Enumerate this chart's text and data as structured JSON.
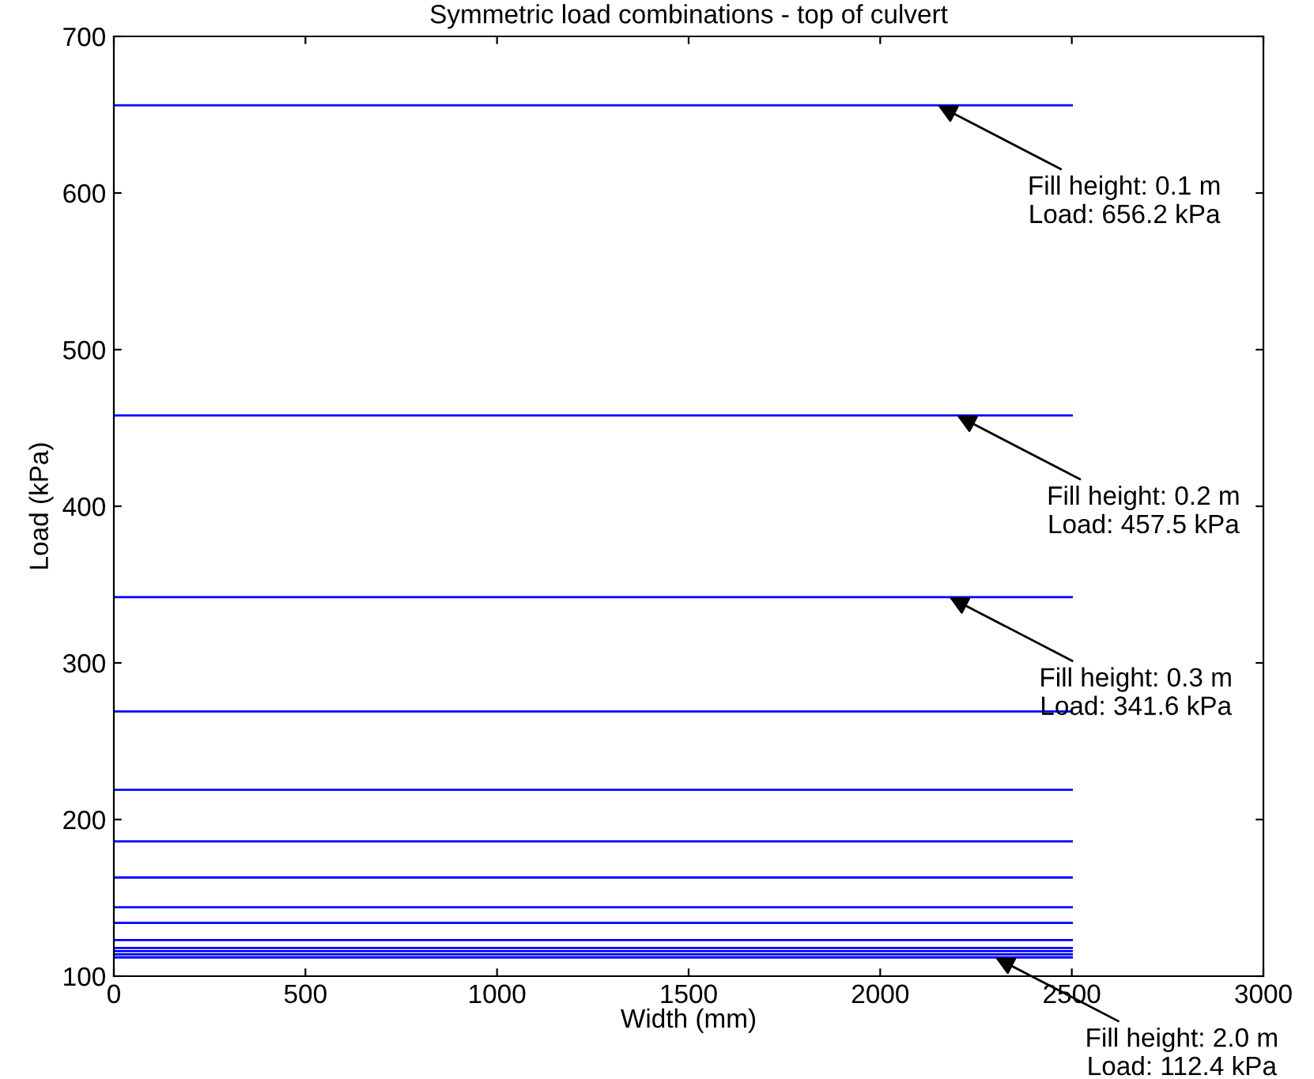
{
  "chart_data": {
    "type": "line",
    "title": "Symmetric load combinations - top of culvert",
    "xlabel": "Width (mm)",
    "ylabel": "Load (kPa)",
    "xlim": [
      0,
      3000
    ],
    "xticks": [
      0,
      500,
      1000,
      1500,
      2000,
      2500,
      3000
    ],
    "ylim": [
      100,
      700
    ],
    "yticks": [
      100,
      200,
      300,
      400,
      500,
      600,
      700
    ],
    "grid": false,
    "marker": "none",
    "line_style": "solid",
    "x": [
      0,
      2500
    ],
    "series": [
      {
        "color": "#0000ff",
        "values": [
          656,
          656
        ]
      },
      {
        "color": "#0000ff",
        "values": [
          458,
          458
        ]
      },
      {
        "color": "#0000ff",
        "values": [
          342,
          342
        ]
      },
      {
        "color": "#0000ff",
        "values": [
          269,
          269
        ]
      },
      {
        "color": "#0000ff",
        "values": [
          219,
          219
        ]
      },
      {
        "color": "#0000ff",
        "values": [
          186,
          186
        ]
      },
      {
        "color": "#0000ff",
        "values": [
          163,
          163
        ]
      },
      {
        "color": "#0000ff",
        "values": [
          144,
          144
        ]
      },
      {
        "color": "#0000ff",
        "values": [
          134,
          134
        ]
      },
      {
        "color": "#0000ff",
        "values": [
          123,
          123
        ]
      },
      {
        "color": "#0000ff",
        "values": [
          118,
          118
        ]
      },
      {
        "color": "#0000ff",
        "values": [
          116,
          116
        ]
      },
      {
        "color": "#0000ff",
        "values": [
          114,
          114
        ]
      },
      {
        "color": "#0000ff",
        "values": [
          112,
          112
        ]
      }
    ],
    "annotations": [
      {
        "text": "Fill height: 0.1 m\nLoad: 656.2 kPa",
        "x": 2150,
        "y": 656
      },
      {
        "text": "Fill height: 0.2 m\nLoad: 457.5 kPa",
        "x": 2200,
        "y": 458
      },
      {
        "text": "Fill height: 0.3 m\nLoad: 341.6 kPa",
        "x": 2180,
        "y": 342
      },
      {
        "text": "Fill height: 2.0 m\nLoad: 112.4 kPa",
        "x": 2300,
        "y": 112
      }
    ]
  }
}
